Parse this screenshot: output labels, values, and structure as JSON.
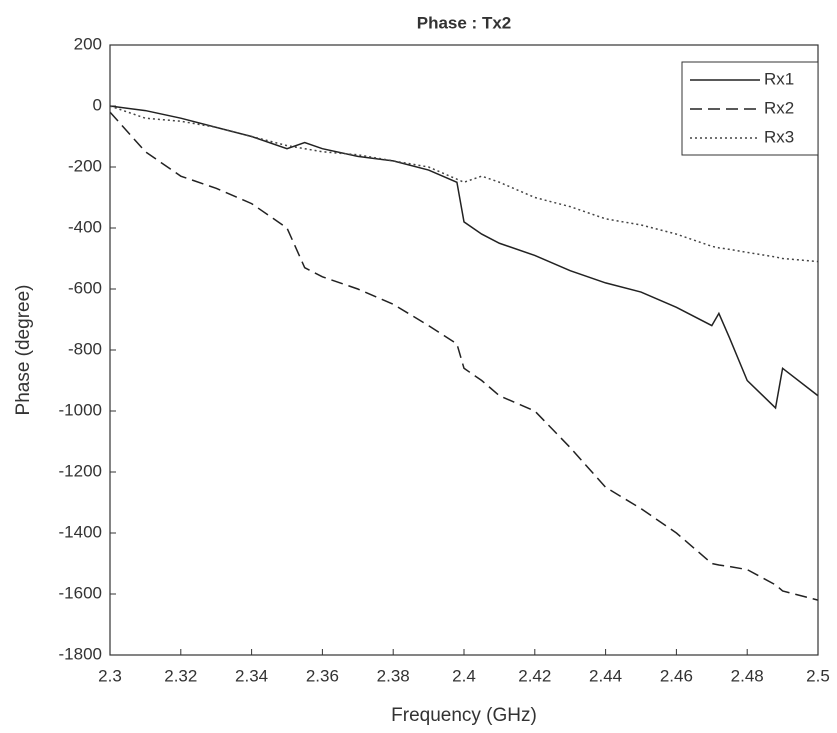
{
  "chart_data": {
    "type": "line",
    "title": "Phase : Tx2",
    "x_label": "Frequency (GHz)",
    "y_label": "Phase (degree)",
    "x": [
      2.3,
      2.31,
      2.32,
      2.33,
      2.34,
      2.35,
      2.355,
      2.36,
      2.37,
      2.38,
      2.39,
      2.398,
      2.4,
      2.405,
      2.41,
      2.42,
      2.43,
      2.44,
      2.45,
      2.46,
      2.47,
      2.472,
      2.475,
      2.48,
      2.488,
      2.49,
      2.5
    ],
    "series": [
      {
        "name": "Rx1",
        "color": "#222222",
        "line_style": "solid",
        "values": [
          0,
          -15,
          -40,
          -70,
          -100,
          -140,
          -120,
          -140,
          -165,
          -180,
          -210,
          -250,
          -380,
          -420,
          -450,
          -490,
          -540,
          -580,
          -610,
          -660,
          -720,
          -680,
          -760,
          -900,
          -990,
          -860,
          -950
        ]
      },
      {
        "name": "Rx2",
        "color": "#222222",
        "line_style": "dashed",
        "values": [
          -20,
          -150,
          -230,
          -270,
          -320,
          -400,
          -530,
          -560,
          -600,
          -650,
          -720,
          -780,
          -860,
          -900,
          -950,
          -1000,
          -1120,
          -1250,
          -1320,
          -1400,
          -1500,
          -1505,
          -1510,
          -1520,
          -1570,
          -1590,
          -1620
        ]
      },
      {
        "name": "Rx3",
        "color": "#444444",
        "line_style": "dotted",
        "values": [
          0,
          -40,
          -50,
          -70,
          -100,
          -130,
          -140,
          -150,
          -160,
          -180,
          -200,
          -240,
          -250,
          -230,
          -250,
          -300,
          -330,
          -370,
          -390,
          -420,
          -460,
          -465,
          -470,
          -480,
          -495,
          -500,
          -510
        ]
      }
    ],
    "xlim": [
      2.3,
      2.5
    ],
    "xticks": [
      2.3,
      2.32,
      2.34,
      2.36,
      2.38,
      2.4,
      2.42,
      2.44,
      2.46,
      2.48,
      2.5
    ],
    "ylim": [
      -1800,
      200
    ],
    "yticks": [
      -1800,
      -1600,
      -1400,
      -1200,
      -1000,
      -800,
      -600,
      -400,
      -200,
      0,
      200
    ],
    "grid": false,
    "legend": "top-right"
  }
}
